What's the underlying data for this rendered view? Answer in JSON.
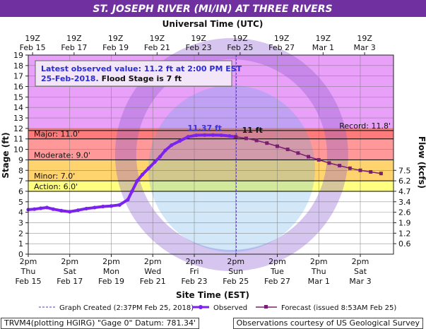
{
  "title": "ST. JOSEPH RIVER (MI/IN) AT THREE RIVERS",
  "top_axis_title": "Universal Time (UTC)",
  "top_tick_hours": "19Z",
  "x_axis_title": "Site Time (EST)",
  "y_axis_title": "Stage (ft)",
  "y2_axis_title": "Flow (kcfs)",
  "info_box": {
    "line1": "Latest observed value: 11.2 ft at 2:00 PM EST",
    "line2_date": "25-Feb-2018.",
    "line2_flood": "Flood Stage is 7 ft"
  },
  "footer": {
    "left": "TRVM4(plotting HGIRG) \"Gage 0\" Datum: 781.34'",
    "right": "Observations courtesy of US Geological Survey"
  },
  "legend": {
    "created": "Graph Created (2:37PM Feb 25, 2018)",
    "observed": "Observed",
    "forecast": "Forecast (issued 8:53AM Feb 25)"
  },
  "colors": {
    "title_bg": "#7030a0",
    "record": "#e8a0f8",
    "major": "#ff7a7a",
    "moderate": "#ff9999",
    "minor": "#ffd36e",
    "action": "#ffff80",
    "observed": "#7b22ee",
    "forecast": "#7a1f70"
  },
  "chart_data": {
    "type": "line",
    "x_axis_unit": "days from Feb 15 2pm EST",
    "ylim": [
      0,
      19
    ],
    "y_ticks": [
      0,
      1,
      2,
      3,
      4,
      5,
      6,
      7,
      8,
      9,
      10,
      11,
      12,
      13,
      14,
      15,
      16,
      17,
      18,
      19
    ],
    "flow_ticks": [
      {
        "stage": 1,
        "label": "0.6"
      },
      {
        "stage": 2,
        "label": "1.2"
      },
      {
        "stage": 3,
        "label": "1.9"
      },
      {
        "stage": 4,
        "label": "2.6"
      },
      {
        "stage": 5,
        "label": "3.4"
      },
      {
        "stage": 6,
        "label": "4.7"
      },
      {
        "stage": 7,
        "label": "6.2"
      },
      {
        "stage": 8,
        "label": "7.5"
      }
    ],
    "bottom_ticks": [
      {
        "day": 0,
        "time": "2pm",
        "dow": "Thu",
        "date": "Feb 15"
      },
      {
        "day": 2,
        "time": "2pm",
        "dow": "Sat",
        "date": "Feb 17"
      },
      {
        "day": 4,
        "time": "2pm",
        "dow": "Mon",
        "date": "Feb 19"
      },
      {
        "day": 6,
        "time": "2pm",
        "dow": "Wed",
        "date": "Feb 21"
      },
      {
        "day": 8,
        "time": "2pm",
        "dow": "Fri",
        "date": "Feb 23"
      },
      {
        "day": 10,
        "time": "2pm",
        "dow": "Sun",
        "date": "Feb 25"
      },
      {
        "day": 12,
        "time": "2pm",
        "dow": "Tue",
        "date": "Feb 27"
      },
      {
        "day": 14,
        "time": "2pm",
        "dow": "Thu",
        "date": "Mar 1"
      },
      {
        "day": 16,
        "time": "2pm",
        "dow": "Sat",
        "date": "Mar 3"
      }
    ],
    "top_ticks": [
      {
        "day": 0.208,
        "date": "Feb 15"
      },
      {
        "day": 2.208,
        "date": "Feb 17"
      },
      {
        "day": 4.208,
        "date": "Feb 19"
      },
      {
        "day": 6.208,
        "date": "Feb 21"
      },
      {
        "day": 8.208,
        "date": "Feb 23"
      },
      {
        "day": 10.208,
        "date": "Feb 25"
      },
      {
        "day": 12.208,
        "date": "Feb 27"
      },
      {
        "day": 14.208,
        "date": "Mar 1"
      },
      {
        "day": 16.208,
        "date": "Mar 3"
      }
    ],
    "flood_categories": [
      {
        "name": "Action",
        "label": "Action: 6.0'",
        "from": 6,
        "to": 7
      },
      {
        "name": "Minor",
        "label": "Minor: 7.0'",
        "from": 7,
        "to": 9
      },
      {
        "name": "Moderate",
        "label": "Moderate: 9.0'",
        "from": 9,
        "to": 11
      },
      {
        "name": "Major",
        "label": "Major: 11.0'",
        "from": 11,
        "to": 19
      }
    ],
    "record": {
      "label": "Record: 11.8'",
      "value": 11.8
    },
    "graph_created_day": 10.02,
    "annotations": [
      {
        "text": "11.37 ft",
        "day": 8.5,
        "stage": 11.37
      },
      {
        "text": "11 ft",
        "day": 10.8,
        "stage": 11.2
      }
    ],
    "series": [
      {
        "name": "Observed",
        "points": [
          [
            0.0,
            4.25
          ],
          [
            0.3,
            4.3
          ],
          [
            0.6,
            4.38
          ],
          [
            0.9,
            4.45
          ],
          [
            1.2,
            4.3
          ],
          [
            1.6,
            4.15
          ],
          [
            2.0,
            4.05
          ],
          [
            2.4,
            4.2
          ],
          [
            2.8,
            4.35
          ],
          [
            3.2,
            4.45
          ],
          [
            3.6,
            4.55
          ],
          [
            4.0,
            4.6
          ],
          [
            4.4,
            4.7
          ],
          [
            4.8,
            5.2
          ],
          [
            5.0,
            6.0
          ],
          [
            5.25,
            7.0
          ],
          [
            5.5,
            7.6
          ],
          [
            5.8,
            8.2
          ],
          [
            6.1,
            8.8
          ],
          [
            6.35,
            9.3
          ],
          [
            6.6,
            9.9
          ],
          [
            6.9,
            10.4
          ],
          [
            7.3,
            10.8
          ],
          [
            7.7,
            11.2
          ],
          [
            8.1,
            11.35
          ],
          [
            8.5,
            11.37
          ],
          [
            8.9,
            11.37
          ],
          [
            9.3,
            11.35
          ],
          [
            9.7,
            11.28
          ],
          [
            10.0,
            11.2
          ]
        ]
      },
      {
        "name": "Forecast",
        "points": [
          [
            10.0,
            11.2
          ],
          [
            10.5,
            11.05
          ],
          [
            11.0,
            10.85
          ],
          [
            11.5,
            10.6
          ],
          [
            12.0,
            10.3
          ],
          [
            12.5,
            10.0
          ],
          [
            13.0,
            9.65
          ],
          [
            13.5,
            9.3
          ],
          [
            14.0,
            9.0
          ],
          [
            14.5,
            8.7
          ],
          [
            15.0,
            8.45
          ],
          [
            15.5,
            8.2
          ],
          [
            16.0,
            8.0
          ],
          [
            16.5,
            7.85
          ],
          [
            17.0,
            7.7
          ]
        ]
      }
    ]
  }
}
